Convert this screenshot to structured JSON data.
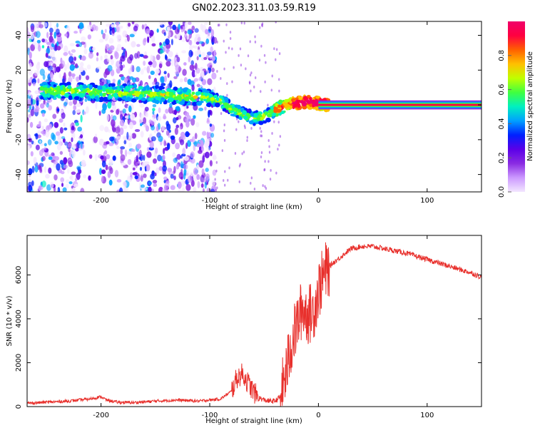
{
  "title": "GN02.2023.311.03.59.R19",
  "colors": {
    "snr_line": "#e8302c",
    "cmap": [
      "#f3e6ff",
      "#cc99ff",
      "#8a2be2",
      "#5b00e8",
      "#0020ff",
      "#00a0ff",
      "#00f0c0",
      "#40ff40",
      "#c0ff00",
      "#ffc000",
      "#ff6000",
      "#ff0040",
      "#f0006a"
    ]
  },
  "chart_data": [
    {
      "type": "heatmap",
      "xlabel": "Height of straight line (km)",
      "ylabel": "Frequency (Hz)",
      "xlim": [
        -268,
        150
      ],
      "ylim": [
        -50,
        48
      ],
      "x_ticks": [
        -200,
        -100,
        0,
        100
      ],
      "y_ticks": [
        -40,
        -20,
        0,
        20,
        40
      ],
      "ridge": {
        "x": [
          -250,
          -225,
          -200,
          -175,
          -150,
          -125,
          -100,
          -90,
          -80,
          -70,
          -60,
          -50,
          -40,
          -30,
          -20,
          -10,
          0,
          10,
          150
        ],
        "y": [
          8,
          8,
          7,
          7,
          6,
          5,
          4,
          2,
          -2,
          -5,
          -8,
          -7,
          -3,
          0,
          1,
          2,
          1,
          0,
          0
        ]
      },
      "colorbar": {
        "label": "Normalized spectral amplitude",
        "range": [
          0,
          1
        ],
        "ticks": [
          0.0,
          0.2,
          0.4,
          0.6,
          0.8
        ]
      }
    },
    {
      "type": "line",
      "xlabel": "Height of straight line (km)",
      "ylabel": "SNR (10 * v/v)",
      "xlim": [
        -268,
        150
      ],
      "ylim": [
        0,
        7800
      ],
      "x_ticks": [
        -200,
        -100,
        0,
        100
      ],
      "y_ticks": [
        0,
        2000,
        4000,
        6000
      ],
      "series": [
        {
          "x": [
            -268,
            -250,
            -230,
            -210,
            -200,
            -195,
            -185,
            -170,
            -150,
            -130,
            -110,
            -100,
            -90,
            -80,
            -75,
            -70,
            -65,
            -60,
            -55,
            -50,
            -45,
            -40,
            -35,
            -30,
            -25,
            -20,
            -15,
            -10,
            -5,
            0,
            5,
            10,
            20,
            30,
            40,
            50,
            60,
            80,
            100,
            120,
            140,
            150
          ],
          "y": [
            150,
            200,
            250,
            350,
            450,
            300,
            200,
            180,
            250,
            300,
            250,
            300,
            350,
            700,
            1300,
            1500,
            1100,
            700,
            400,
            300,
            250,
            250,
            450,
            1500,
            2800,
            3700,
            4500,
            4200,
            4300,
            5300,
            6000,
            6400,
            6800,
            7200,
            7300,
            7300,
            7200,
            7000,
            6700,
            6400,
            6100,
            5900
          ]
        }
      ]
    }
  ]
}
